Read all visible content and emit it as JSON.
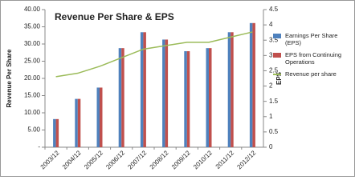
{
  "chart_data": {
    "type": "bar_line",
    "title": "Revenue Per Share & EPS",
    "y_label": "Revenue Per Share",
    "y2_label": "EPS",
    "categories": [
      "2003/12",
      "2004/12",
      "2005/12",
      "2006/12",
      "2007/12",
      "2008/12",
      "2009/12",
      "2010/12",
      "2011/12",
      "2012/12"
    ],
    "series": [
      {
        "name": "Earnings Per Share (EPS)",
        "type": "bar",
        "axis": "y2",
        "color": "#4f81bd",
        "values": [
          0.92,
          1.58,
          1.95,
          3.24,
          3.76,
          3.52,
          3.14,
          3.24,
          3.76,
          4.06
        ]
      },
      {
        "name": "EPS from Continuing Operations",
        "type": "bar",
        "axis": "y2",
        "color": "#c0504d",
        "values": [
          0.92,
          1.58,
          1.95,
          3.24,
          3.76,
          3.52,
          3.14,
          3.24,
          3.76,
          4.06
        ]
      },
      {
        "name": "Revenue per share",
        "type": "line",
        "color": "#9bbb59",
        "values": [
          20.5,
          21.5,
          23.5,
          26,
          28.5,
          29.5,
          30.5,
          30.5,
          32,
          33.5
        ]
      }
    ],
    "ylim": [
      0,
      40
    ],
    "yticks": [
      {
        "value": 0,
        "label": "-"
      },
      {
        "value": 5,
        "label": "5.00"
      },
      {
        "value": 10,
        "label": "10.00"
      },
      {
        "value": 15,
        "label": "15.00"
      },
      {
        "value": 20,
        "label": "20.00"
      },
      {
        "value": 25,
        "label": "25.00"
      },
      {
        "value": 30,
        "label": "30.00"
      },
      {
        "value": 35,
        "label": "35.00"
      },
      {
        "value": 40,
        "label": "40.00"
      }
    ],
    "y2lim": [
      0,
      4.5
    ],
    "y2ticks": [
      0,
      0.5,
      1,
      1.5,
      2,
      2.5,
      3,
      3.5,
      4,
      4.5
    ]
  }
}
